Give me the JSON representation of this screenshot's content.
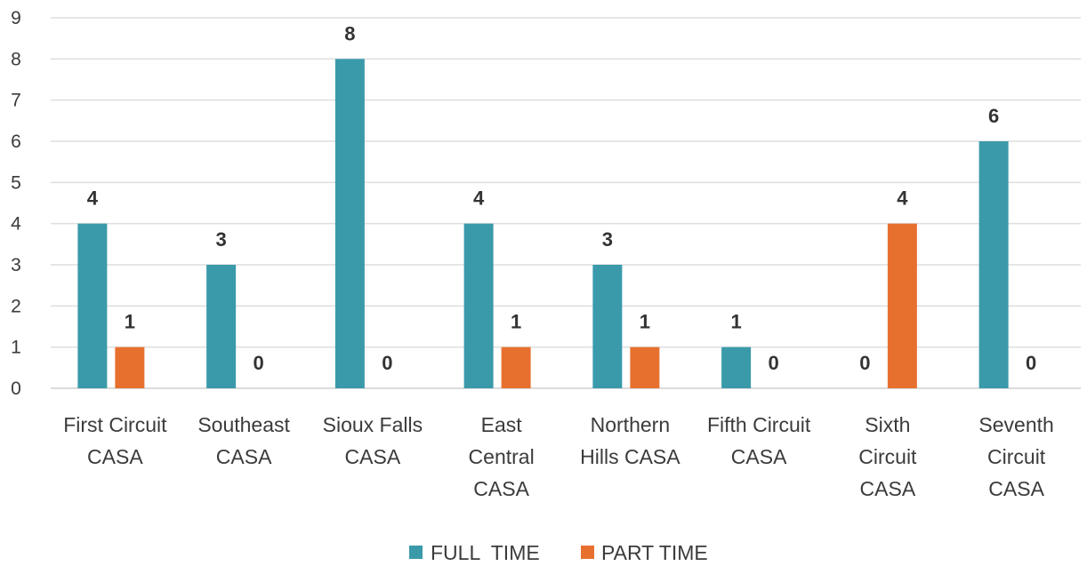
{
  "chart_data": {
    "type": "bar",
    "title": "",
    "xlabel": "",
    "ylabel": "",
    "ylim": [
      0,
      9
    ],
    "yticks": [
      0,
      1,
      2,
      3,
      4,
      5,
      6,
      7,
      8,
      9
    ],
    "grid": true,
    "legend_position": "bottom",
    "categories": [
      [
        "First Circuit",
        "CASA"
      ],
      [
        "Southeast",
        "CASA"
      ],
      [
        "Sioux Falls",
        "CASA"
      ],
      [
        "East",
        "Central",
        "CASA"
      ],
      [
        "Northern",
        "Hills CASA"
      ],
      [
        "Fifth Circuit",
        "CASA"
      ],
      [
        "Sixth",
        "Circuit",
        "CASA"
      ],
      [
        "Seventh",
        "Circuit",
        "CASA"
      ]
    ],
    "series": [
      {
        "name": "FULL  TIME",
        "color": "#3a9aaa",
        "values": [
          4,
          3,
          8,
          4,
          3,
          1,
          0,
          6
        ]
      },
      {
        "name": "PART TIME",
        "color": "#e8702f",
        "values": [
          1,
          0,
          0,
          1,
          1,
          0,
          4,
          0
        ]
      }
    ]
  }
}
